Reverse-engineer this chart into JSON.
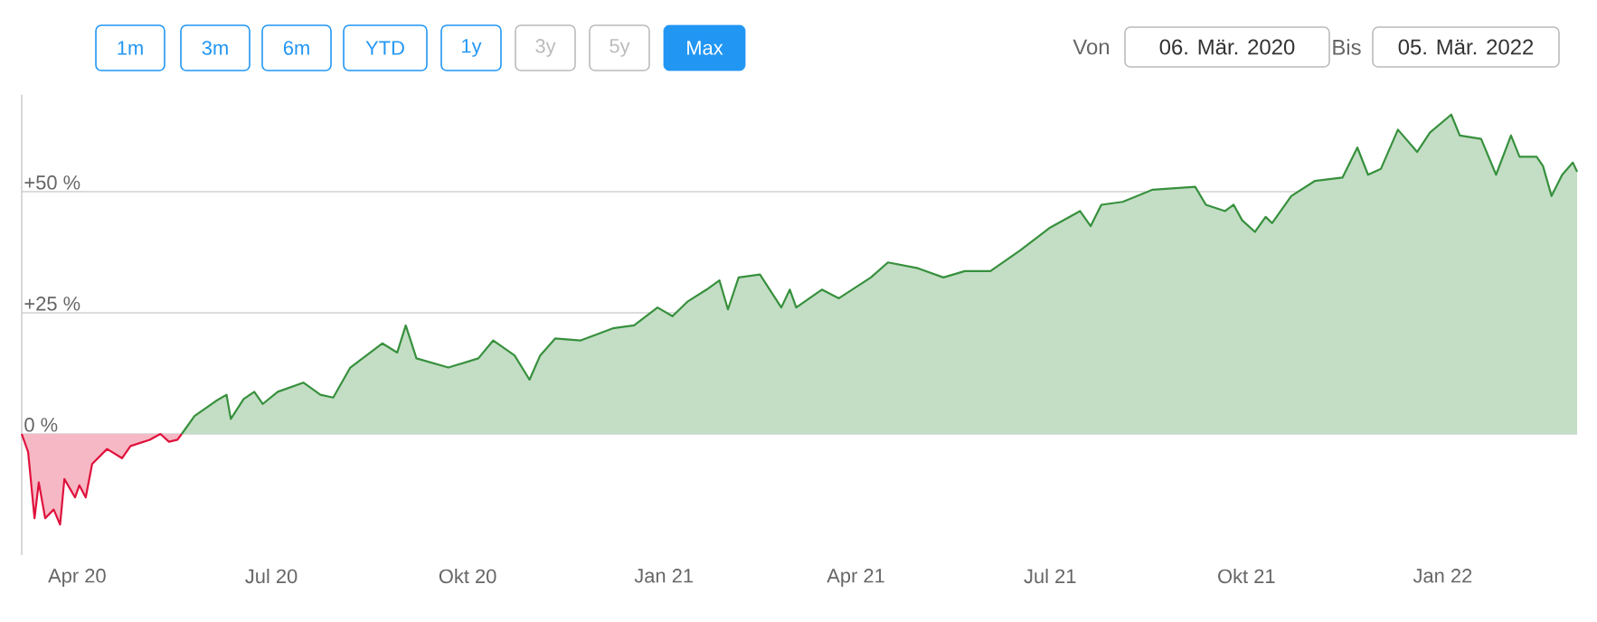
{
  "chart_data": {
    "type": "area",
    "annotations": [
      "1m",
      "3m",
      "6m",
      "YTD",
      "1y",
      "3y",
      "5y",
      "Max",
      "Von",
      "06. Mär. 2020",
      "Bis",
      "05. Mär. 2022"
    ],
    "xlim": [
      "2020-03-06",
      "2022-03-05"
    ],
    "xticks": [
      {
        "value": "2020-04-01",
        "label": "Apr 20"
      },
      {
        "value": "2020-07-01",
        "label": "Jul 20"
      },
      {
        "value": "2020-10-01",
        "label": "Okt 20"
      },
      {
        "value": "2021-01-01",
        "label": "Jan 21"
      },
      {
        "value": "2021-04-01",
        "label": "Apr 21"
      },
      {
        "value": "2021-07-01",
        "label": "Jul 21"
      },
      {
        "value": "2021-10-01",
        "label": "Okt 21"
      },
      {
        "value": "2022-01-01",
        "label": "Jan 22"
      }
    ],
    "ylim": [
      -25,
      70
    ],
    "yticks": [
      {
        "value": 0,
        "label": "0 %"
      },
      {
        "value": 25,
        "label": "+25 %"
      },
      {
        "value": 50,
        "label": "+50 %"
      }
    ],
    "grid": "y",
    "series": [
      {
        "color": "#e0113c",
        "x": [
          "2020-03-06",
          "2020-03-09",
          "2020-03-12",
          "2020-03-14",
          "2020-03-17",
          "2020-03-21",
          "2020-03-24",
          "2020-03-26",
          "2020-03-31",
          "2020-04-02",
          "2020-04-05",
          "2020-04-08",
          "2020-04-15",
          "2020-04-22",
          "2020-04-26",
          "2020-05-05",
          "2020-05-10",
          "2020-05-14",
          "2020-05-18",
          "2020-05-20"
        ],
        "values": [
          0,
          -3.7,
          -17.4,
          -10,
          -17.4,
          -15.6,
          -18.7,
          -9.3,
          -13.1,
          -10.6,
          -13.1,
          -6.2,
          -3.1,
          -5.0,
          -2.5,
          -1.2,
          0,
          -1.6,
          -1.2,
          0
        ]
      },
      {
        "color": "#37903d",
        "x": [
          "2020-05-20",
          "2020-05-26",
          "2020-06-05",
          "2020-06-10",
          "2020-06-12",
          "2020-06-18",
          "2020-06-23",
          "2020-06-27",
          "2020-07-04",
          "2020-07-16",
          "2020-07-24",
          "2020-07-30",
          "2020-08-07",
          "2020-08-22",
          "2020-08-29",
          "2020-09-02",
          "2020-09-07",
          "2020-09-22",
          "2020-10-06",
          "2020-10-13",
          "2020-10-23",
          "2020-10-30",
          "2020-11-04",
          "2020-11-11",
          "2020-11-23",
          "2020-12-08",
          "2020-12-18",
          "2020-12-29",
          "2021-01-05",
          "2021-01-12",
          "2021-01-21",
          "2021-01-27",
          "2021-01-31",
          "2021-02-05",
          "2021-02-15",
          "2021-02-25",
          "2021-03-01",
          "2021-03-04",
          "2021-03-16",
          "2021-03-24",
          "2021-04-08",
          "2021-04-16",
          "2021-04-30",
          "2021-05-12",
          "2021-05-22",
          "2021-06-03",
          "2021-06-17",
          "2021-07-01",
          "2021-07-15",
          "2021-07-20",
          "2021-07-25",
          "2021-08-04",
          "2021-08-18",
          "2021-09-07",
          "2021-09-12",
          "2021-09-21",
          "2021-09-25",
          "2021-09-29",
          "2021-10-05",
          "2021-10-10",
          "2021-10-13",
          "2021-10-22",
          "2021-11-02",
          "2021-11-15",
          "2021-11-22",
          "2021-11-27",
          "2021-12-03",
          "2021-12-11",
          "2021-12-20",
          "2021-12-26",
          "2022-01-05",
          "2022-01-09",
          "2022-01-19",
          "2022-01-26",
          "2022-02-02",
          "2022-02-06",
          "2022-02-14",
          "2022-02-17",
          "2022-02-21",
          "2022-02-26",
          "2022-03-03",
          "2022-03-05"
        ],
        "values": [
          0,
          3.7,
          6.8,
          8.1,
          3.1,
          7.2,
          8.7,
          6.2,
          8.7,
          10.6,
          8.1,
          7.5,
          13.7,
          18.7,
          16.8,
          22.4,
          15.6,
          13.7,
          15.6,
          19.3,
          16.2,
          11.2,
          16.2,
          19.7,
          19.3,
          21.8,
          22.4,
          26.1,
          24.3,
          27.3,
          29.8,
          31.7,
          25.7,
          32.3,
          32.9,
          26.1,
          29.8,
          26.1,
          29.8,
          28.0,
          32.3,
          35.4,
          34.2,
          32.3,
          33.6,
          33.6,
          37.9,
          42.6,
          46.0,
          42.9,
          47.3,
          47.9,
          50.4,
          51.0,
          47.3,
          46.0,
          47.3,
          44.1,
          41.7,
          44.8,
          43.5,
          49.1,
          52.2,
          52.9,
          59.1,
          53.5,
          54.7,
          62.8,
          58.2,
          62.2,
          65.9,
          61.6,
          60.9,
          53.5,
          61.6,
          57.2,
          57.2,
          55.3,
          49.1,
          53.5,
          56.0,
          54.1
        ]
      }
    ]
  }
}
